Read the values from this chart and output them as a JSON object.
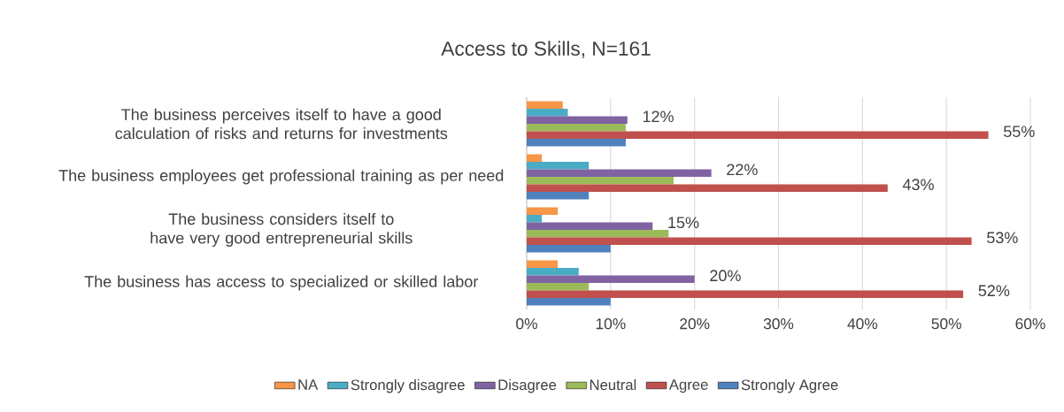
{
  "chart_data": {
    "type": "bar",
    "orientation": "horizontal",
    "title": "Access to Skills, N=161",
    "categories": [
      "The business perceives itself to have a good calculation of risks and returns for investments",
      "The business employees get professional training as per need",
      "The business considers itself to have very good entrepreneurial skills",
      "The business has access to specialized or skilled labor"
    ],
    "series": [
      {
        "name": "NA",
        "color": "#f79646",
        "values": [
          4.3,
          1.8,
          3.7,
          3.7
        ]
      },
      {
        "name": "Strongly disagree",
        "color": "#4bacc6",
        "values": [
          4.9,
          7.4,
          1.8,
          6.2
        ]
      },
      {
        "name": "Disagree",
        "color": "#8064a2",
        "values": [
          12,
          22,
          15,
          20
        ],
        "value_labels": [
          "12%",
          "22%",
          "15%",
          "20%"
        ]
      },
      {
        "name": "Neutral",
        "color": "#9bbb59",
        "values": [
          11.8,
          17.5,
          16.9,
          7.4
        ]
      },
      {
        "name": "Agree",
        "color": "#c0504d",
        "values": [
          55,
          43,
          53,
          52
        ],
        "value_labels": [
          "55%",
          "43%",
          "53%",
          "52%"
        ]
      },
      {
        "name": "Strongly Agree",
        "color": "#4f81bd",
        "values": [
          11.8,
          7.4,
          10,
          10
        ]
      }
    ],
    "xlim": [
      0,
      60
    ],
    "xticks": [
      {
        "value": 0,
        "label": "0%"
      },
      {
        "value": 10,
        "label": "10%"
      },
      {
        "value": 20,
        "label": "20%"
      },
      {
        "value": 30,
        "label": "30%"
      },
      {
        "value": 40,
        "label": "40%"
      },
      {
        "value": 50,
        "label": "50%"
      },
      {
        "value": 60,
        "label": "60%"
      }
    ],
    "grid": "x",
    "legend": "bottom"
  }
}
